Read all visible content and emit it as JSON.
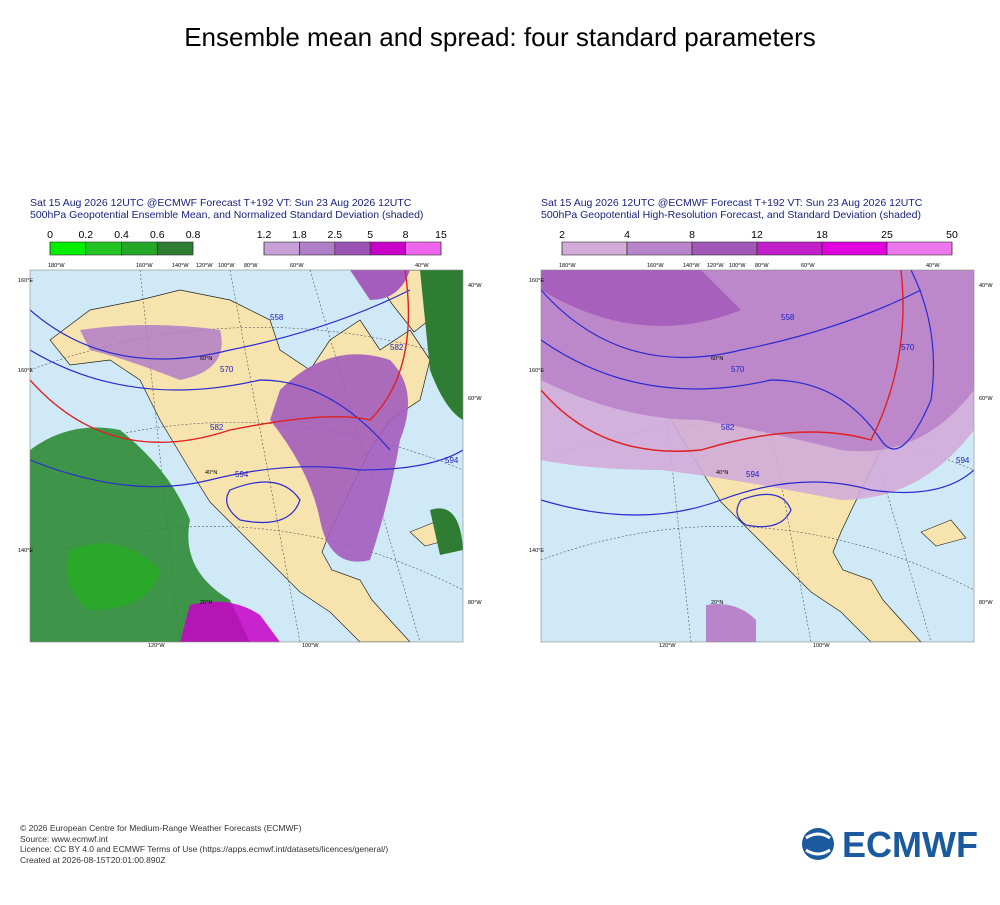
{
  "title": "Ensemble mean and spread: four standard parameters",
  "panels": [
    {
      "header": [
        "Sat 15 Aug 2026 12UTC @ECMWF Forecast T+192 VT: Sun 23 Aug 2026 12UTC",
        "500hPa Geopotential Ensemble Mean, and Normalized Standard Deviation (shaded)"
      ],
      "legends": [
        {
          "ticks": [
            0,
            0.2,
            0.4,
            0.6,
            0.8
          ],
          "colors": [
            "#00ee00",
            "#22c422",
            "#25a825",
            "#2e7d32"
          ]
        },
        {
          "ticks": [
            1.2,
            1.8,
            2.5,
            5,
            8,
            15
          ],
          "colors": [
            "#c7a0d8",
            "#b07ec6",
            "#9a52b5",
            "#c800c8",
            "#ee66ee"
          ]
        }
      ],
      "map_labels": [
        "180°W",
        "160°W",
        "140°W",
        "120°W",
        "100°W",
        "80°W",
        "60°W",
        "40°W",
        "160°E",
        "160°E",
        "140°E",
        "40°W",
        "60°W",
        "80°W",
        "120°W",
        "100°W",
        "570",
        "582",
        "594",
        "594",
        "558",
        "582",
        "60°N",
        "40°N",
        "20°N"
      ]
    },
    {
      "header": [
        "Sat 15 Aug 2026 12UTC @ECMWF Forecast T+192 VT: Sun 23 Aug 2026 12UTC",
        "500hPa Geopotential High-Resolution Forecast, and Standard Deviation (shaded)"
      ],
      "legends": [
        {
          "ticks": [
            2,
            4,
            8,
            12,
            18,
            25,
            50
          ],
          "colors": [
            "#d2abd9",
            "#b984c9",
            "#a158b9",
            "#c21ec9",
            "#e000e0",
            "#ee77ee"
          ]
        }
      ],
      "map_labels": [
        "180°W",
        "160°W",
        "140°W",
        "120°W",
        "100°W",
        "80°W",
        "60°W",
        "40°W",
        "160°E",
        "160°E",
        "140°E",
        "40°W",
        "60°W",
        "80°W",
        "120°W",
        "100°W",
        "570",
        "582",
        "594",
        "594",
        "558",
        "570",
        "60°N",
        "40°N",
        "20°N"
      ]
    }
  ],
  "footer": [
    "© 2026 European Centre for Medium-Range Weather Forecasts (ECMWF)",
    "Source: www.ecmwf.int",
    "Licence: CC BY 4.0 and ECMWF Terms of Use (https://apps.ecmwf.int/datasets/licences/general/)",
    "Created at 2026-08-15T20:01:00.890Z"
  ],
  "logo": "ECMWF"
}
